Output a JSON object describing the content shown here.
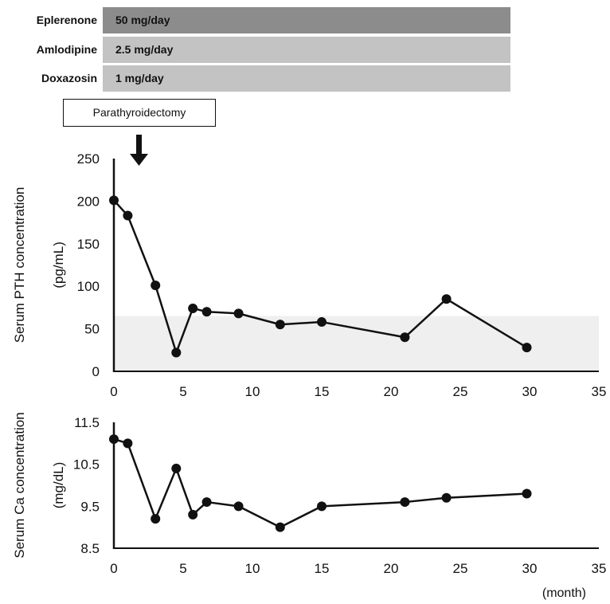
{
  "medications": [
    {
      "name": "Eplerenone",
      "dose": "50 mg/day",
      "color": "#8c8c8c"
    },
    {
      "name": "Amlodipine",
      "dose": "2.5 mg/day",
      "color": "#c3c3c3"
    },
    {
      "name": "Doxazosin",
      "dose": "1 mg/day",
      "color": "#c3c3c3"
    }
  ],
  "event": {
    "label": "Parathyroidectomy"
  },
  "x_unit_label": "(month)",
  "chart_data": [
    {
      "type": "line",
      "ylabel_line1": "Serum PTH concentration",
      "ylabel_line2": "(pg/mL)",
      "xlim": [
        0,
        35
      ],
      "ylim": [
        0,
        250
      ],
      "x_ticks": [
        0,
        5,
        10,
        15,
        20,
        25,
        30,
        35
      ],
      "y_ticks": [
        0,
        50,
        100,
        150,
        200,
        250
      ],
      "reference_range": [
        0,
        65
      ],
      "reference_color": "#efefef",
      "line_color": "#111111",
      "x": [
        0,
        1,
        3,
        4.5,
        5.7,
        6.7,
        9,
        12,
        15,
        21,
        24,
        29.8
      ],
      "values": [
        201,
        183,
        101,
        22,
        74,
        70,
        68,
        55,
        58,
        40,
        85,
        28
      ]
    },
    {
      "type": "line",
      "ylabel_line1": "Serum Ca concentration",
      "ylabel_line2": "(mg/dL)",
      "xlim": [
        0,
        35
      ],
      "ylim": [
        8.5,
        11.5
      ],
      "x_ticks": [
        0,
        5,
        10,
        15,
        20,
        25,
        30,
        35
      ],
      "y_ticks": [
        "8.5",
        "9.5",
        "10.5",
        "11.5"
      ],
      "line_color": "#111111",
      "x": [
        0,
        1,
        3,
        4.5,
        5.7,
        6.7,
        9,
        12,
        15,
        21,
        24,
        29.8
      ],
      "values": [
        11.1,
        11.0,
        9.2,
        10.4,
        9.3,
        9.6,
        9.5,
        9.0,
        9.5,
        9.6,
        9.7,
        9.8
      ]
    }
  ]
}
